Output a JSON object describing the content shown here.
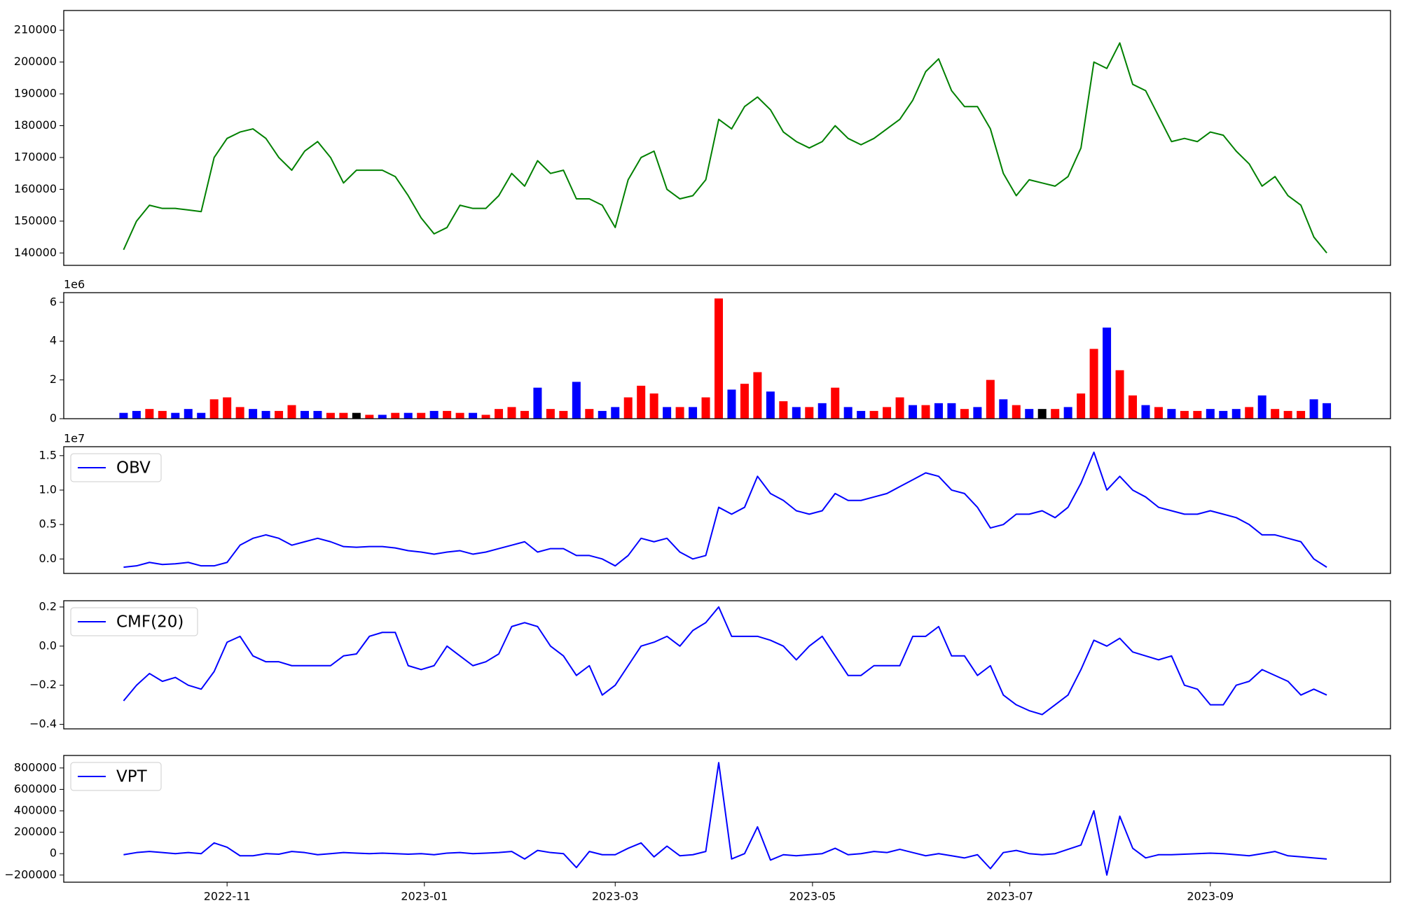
{
  "chart_data": [
    {
      "type": "line",
      "color": "green",
      "x": [
        0,
        4,
        8,
        12,
        16,
        20,
        24,
        28,
        32,
        36,
        40,
        44,
        48,
        52,
        56,
        60,
        64,
        68,
        72,
        76,
        80,
        84,
        88,
        92,
        96,
        100,
        104,
        108,
        112,
        116,
        120,
        124,
        128,
        132,
        136,
        140,
        144,
        148,
        152,
        156,
        160,
        164,
        168,
        172,
        176,
        180,
        184,
        188,
        192,
        196,
        200,
        204,
        208,
        212,
        216,
        220,
        224,
        228,
        232,
        236,
        240,
        244,
        248,
        252,
        256,
        260,
        264,
        268,
        272,
        276,
        280,
        284,
        288,
        292,
        296,
        300,
        304,
        308,
        312,
        316,
        320,
        324,
        328,
        332,
        336,
        340,
        344,
        348,
        352,
        356,
        360,
        364,
        368,
        372
      ],
      "values": [
        141000,
        150000,
        155000,
        154000,
        154000,
        153500,
        153000,
        170000,
        176000,
        178000,
        179000,
        176000,
        170000,
        166000,
        172000,
        175000,
        170000,
        162000,
        166000,
        166000,
        166000,
        164000,
        158000,
        151000,
        146000,
        148000,
        155000,
        154000,
        154000,
        158000,
        165000,
        161000,
        169000,
        165000,
        166000,
        157000,
        157000,
        155000,
        148000,
        163000,
        170000,
        172000,
        160000,
        157000,
        158000,
        163000,
        182000,
        179000,
        186000,
        189000,
        185000,
        178000,
        175000,
        173000,
        175000,
        180000,
        176000,
        174000,
        176000,
        179000,
        182000,
        188000,
        197000,
        201000,
        191000,
        186000,
        186000,
        179000,
        165000,
        158000,
        163000,
        162000,
        161000,
        164000,
        173000,
        200000,
        198000,
        206000,
        193000,
        191000,
        183000,
        175000,
        176000,
        175000,
        178000,
        177000,
        172000,
        168000,
        161000,
        164000,
        158000,
        155000,
        145000,
        140000
      ],
      "xlim": [
        -18.5,
        391.7
      ],
      "ylim": [
        136100,
        216200
      ],
      "yticks": [
        140000,
        150000,
        160000,
        170000,
        180000,
        190000,
        200000,
        210000
      ]
    },
    {
      "type": "bar",
      "offset_label": "1e6",
      "x": [
        0,
        4,
        8,
        12,
        16,
        20,
        24,
        28,
        32,
        36,
        40,
        44,
        48,
        52,
        56,
        60,
        64,
        68,
        72,
        76,
        80,
        84,
        88,
        92,
        96,
        100,
        104,
        108,
        112,
        116,
        120,
        124,
        128,
        132,
        136,
        140,
        144,
        148,
        152,
        156,
        160,
        164,
        168,
        172,
        176,
        180,
        184,
        188,
        192,
        196,
        200,
        204,
        208,
        212,
        216,
        220,
        224,
        228,
        232,
        236,
        240,
        244,
        248,
        252,
        256,
        260,
        264,
        268,
        272,
        276,
        280,
        284,
        288,
        292,
        296,
        300,
        304,
        308,
        312,
        316,
        320,
        324,
        328,
        332,
        336,
        340,
        344,
        348,
        352,
        356,
        360,
        364,
        368,
        372
      ],
      "values": [
        0.3,
        0.4,
        0.5,
        0.4,
        0.3,
        0.5,
        0.3,
        1.0,
        1.1,
        0.6,
        0.5,
        0.4,
        0.4,
        0.7,
        0.4,
        0.4,
        0.3,
        0.3,
        0.3,
        0.2,
        0.2,
        0.3,
        0.3,
        0.3,
        0.4,
        0.4,
        0.3,
        0.3,
        0.2,
        0.5,
        0.6,
        0.4,
        1.6,
        0.5,
        0.4,
        1.9,
        0.5,
        0.4,
        0.6,
        1.1,
        1.7,
        1.3,
        0.6,
        0.6,
        0.6,
        1.1,
        6.2,
        1.5,
        1.8,
        2.4,
        1.4,
        0.9,
        0.6,
        0.6,
        0.8,
        1.6,
        0.6,
        0.4,
        0.4,
        0.6,
        1.1,
        0.7,
        0.7,
        0.8,
        0.8,
        0.5,
        0.6,
        2.0,
        1.0,
        0.7,
        0.5,
        0.5,
        0.5,
        0.6,
        1.3,
        3.6,
        4.7,
        2.5,
        1.2,
        0.7,
        0.6,
        0.5,
        0.4,
        0.4,
        0.5,
        0.4,
        0.5,
        0.6,
        1.2,
        0.5,
        0.4,
        0.4,
        1.0,
        0.8
      ],
      "colors": [
        "blue",
        "blue",
        "red",
        "red",
        "blue",
        "blue",
        "blue",
        "red",
        "red",
        "red",
        "blue",
        "blue",
        "red",
        "red",
        "blue",
        "blue",
        "red",
        "red",
        "black",
        "red",
        "blue",
        "red",
        "blue",
        "red",
        "blue",
        "red",
        "red",
        "blue",
        "red",
        "red",
        "red",
        "red",
        "blue",
        "red",
        "red",
        "blue",
        "red",
        "blue",
        "blue",
        "red",
        "red",
        "red",
        "blue",
        "red",
        "blue",
        "red",
        "red",
        "blue",
        "red",
        "red",
        "blue",
        "red",
        "blue",
        "red",
        "blue",
        "red",
        "blue",
        "blue",
        "red",
        "red",
        "red",
        "blue",
        "red",
        "blue",
        "blue",
        "red",
        "blue",
        "red",
        "blue",
        "red",
        "blue",
        "black",
        "red",
        "blue",
        "red",
        "red",
        "blue",
        "red",
        "red",
        "blue",
        "red",
        "blue",
        "red",
        "red",
        "blue",
        "blue",
        "blue",
        "red",
        "blue",
        "red",
        "red",
        "red",
        "blue",
        "blue"
      ],
      "xlim": [
        -18.5,
        391.7
      ],
      "ylim": [
        0,
        6.5
      ],
      "yticks": [
        0,
        2,
        4,
        6
      ]
    },
    {
      "type": "line",
      "offset_label": "1e7",
      "legend": "upper left",
      "x": [
        0,
        4,
        8,
        12,
        16,
        20,
        24,
        28,
        32,
        36,
        40,
        44,
        48,
        52,
        56,
        60,
        64,
        68,
        72,
        76,
        80,
        84,
        88,
        92,
        96,
        100,
        104,
        108,
        112,
        116,
        120,
        124,
        128,
        132,
        136,
        140,
        144,
        148,
        152,
        156,
        160,
        164,
        168,
        172,
        176,
        180,
        184,
        188,
        192,
        196,
        200,
        204,
        208,
        212,
        216,
        220,
        224,
        228,
        232,
        236,
        240,
        244,
        248,
        252,
        256,
        260,
        264,
        268,
        272,
        276,
        280,
        284,
        288,
        292,
        296,
        300,
        304,
        308,
        312,
        316,
        320,
        324,
        328,
        332,
        336,
        340,
        344,
        348,
        352,
        356,
        360,
        364,
        368,
        372
      ],
      "series": [
        {
          "name": "OBV",
          "color": "blue",
          "values": [
            -0.12,
            -0.1,
            -0.05,
            -0.08,
            -0.07,
            -0.05,
            -0.1,
            -0.1,
            -0.05,
            0.2,
            0.3,
            0.35,
            0.3,
            0.2,
            0.25,
            0.3,
            0.25,
            0.18,
            0.17,
            0.18,
            0.18,
            0.16,
            0.12,
            0.1,
            0.07,
            0.1,
            0.12,
            0.07,
            0.1,
            0.15,
            0.2,
            0.25,
            0.1,
            0.15,
            0.15,
            0.05,
            0.05,
            0.0,
            -0.1,
            0.05,
            0.3,
            0.25,
            0.3,
            0.1,
            0.0,
            0.05,
            0.75,
            0.65,
            0.75,
            1.2,
            0.95,
            0.85,
            0.7,
            0.65,
            0.7,
            0.95,
            0.85,
            0.85,
            0.9,
            0.95,
            1.05,
            1.15,
            1.25,
            1.2,
            1.0,
            0.95,
            0.75,
            0.45,
            0.5,
            0.65,
            0.65,
            0.7,
            0.6,
            0.75,
            1.1,
            1.55,
            1.0,
            1.2,
            1.0,
            0.9,
            0.75,
            0.7,
            0.65,
            0.65,
            0.7,
            0.65,
            0.6,
            0.5,
            0.35,
            0.35,
            0.3,
            0.25,
            0.0,
            -0.12
          ]
        }
      ],
      "xlim": [
        -18.5,
        391.7
      ],
      "ylim": [
        -0.21,
        1.63
      ],
      "yticks": [
        {
          "value": 0,
          "label": "0.0"
        },
        {
          "value": 0.5,
          "label": "0.5"
        },
        {
          "value": 1,
          "label": "1.0"
        },
        {
          "value": 1.5,
          "label": "1.5"
        }
      ]
    },
    {
      "type": "line",
      "legend": "upper left",
      "x": [
        0,
        4,
        8,
        12,
        16,
        20,
        24,
        28,
        32,
        36,
        40,
        44,
        48,
        52,
        56,
        60,
        64,
        68,
        72,
        76,
        80,
        84,
        88,
        92,
        96,
        100,
        104,
        108,
        112,
        116,
        120,
        124,
        128,
        132,
        136,
        140,
        144,
        148,
        152,
        156,
        160,
        164,
        168,
        172,
        176,
        180,
        184,
        188,
        192,
        196,
        200,
        204,
        208,
        212,
        216,
        220,
        224,
        228,
        232,
        236,
        240,
        244,
        248,
        252,
        256,
        260,
        264,
        268,
        272,
        276,
        280,
        284,
        288,
        292,
        296,
        300,
        304,
        308,
        312,
        316,
        320,
        324,
        328,
        332,
        336,
        340,
        344,
        348,
        352,
        356,
        360,
        364,
        368,
        372
      ],
      "series": [
        {
          "name": "CMF(20)",
          "color": "blue",
          "values": [
            -0.28,
            -0.2,
            -0.14,
            -0.18,
            -0.16,
            -0.2,
            -0.22,
            -0.13,
            0.02,
            0.05,
            -0.05,
            -0.08,
            -0.08,
            -0.1,
            -0.1,
            -0.1,
            -0.1,
            -0.05,
            -0.04,
            0.05,
            0.07,
            0.07,
            -0.1,
            -0.12,
            -0.1,
            0.0,
            -0.05,
            -0.1,
            -0.08,
            -0.04,
            0.1,
            0.12,
            0.1,
            0.0,
            -0.05,
            -0.15,
            -0.1,
            -0.25,
            -0.2,
            -0.1,
            0.0,
            0.02,
            0.05,
            0.0,
            0.08,
            0.12,
            0.2,
            0.05,
            0.05,
            0.05,
            0.03,
            0.0,
            -0.07,
            0.0,
            0.05,
            -0.05,
            -0.15,
            -0.15,
            -0.1,
            -0.1,
            -0.1,
            0.05,
            0.05,
            0.1,
            -0.05,
            -0.05,
            -0.15,
            -0.1,
            -0.25,
            -0.3,
            -0.33,
            -0.35,
            -0.3,
            -0.25,
            -0.12,
            0.03,
            0.0,
            0.04,
            -0.03,
            -0.05,
            -0.07,
            -0.05,
            -0.2,
            -0.22,
            -0.3,
            -0.3,
            -0.2,
            -0.18,
            -0.12,
            -0.15,
            -0.18,
            -0.25,
            -0.22,
            -0.25
          ]
        }
      ],
      "xlim": [
        -18.5,
        391.7
      ],
      "ylim": [
        -0.423,
        0.232
      ],
      "yticks": [
        {
          "value": -0.4,
          "label": "−0.4"
        },
        {
          "value": -0.2,
          "label": "−0.2"
        },
        {
          "value": 0,
          "label": "0.0"
        },
        {
          "value": 0.2,
          "label": "0.2"
        }
      ]
    },
    {
      "type": "line",
      "legend": "upper left",
      "x": [
        0,
        4,
        8,
        12,
        16,
        20,
        24,
        28,
        32,
        36,
        40,
        44,
        48,
        52,
        56,
        60,
        64,
        68,
        72,
        76,
        80,
        84,
        88,
        92,
        96,
        100,
        104,
        108,
        112,
        116,
        120,
        124,
        128,
        132,
        136,
        140,
        144,
        148,
        152,
        156,
        160,
        164,
        168,
        172,
        176,
        180,
        184,
        188,
        192,
        196,
        200,
        204,
        208,
        212,
        216,
        220,
        224,
        228,
        232,
        236,
        240,
        244,
        248,
        252,
        256,
        260,
        264,
        268,
        272,
        276,
        280,
        284,
        288,
        292,
        296,
        300,
        304,
        308,
        312,
        316,
        320,
        324,
        328,
        332,
        336,
        340,
        344,
        348,
        352,
        356,
        360,
        364,
        368,
        372
      ],
      "series": [
        {
          "name": "VPT",
          "color": "blue",
          "values": [
            -10000,
            10000,
            20000,
            10000,
            0,
            10000,
            0,
            100000,
            60000,
            -20000,
            -20000,
            0,
            -5000,
            20000,
            10000,
            -10000,
            0,
            10000,
            5000,
            0,
            5000,
            0,
            -5000,
            0,
            -10000,
            5000,
            10000,
            0,
            5000,
            10000,
            20000,
            -50000,
            30000,
            10000,
            0,
            -130000,
            20000,
            -10000,
            -10000,
            50000,
            100000,
            -30000,
            70000,
            -20000,
            -10000,
            20000,
            850000,
            -50000,
            0,
            250000,
            -60000,
            -10000,
            -20000,
            -10000,
            0,
            50000,
            -10000,
            0,
            20000,
            10000,
            40000,
            10000,
            -20000,
            0,
            -20000,
            -40000,
            -10000,
            -140000,
            10000,
            30000,
            0,
            -10000,
            0,
            40000,
            80000,
            400000,
            -200000,
            350000,
            50000,
            -40000,
            -10000,
            -10000,
            -5000,
            0,
            5000,
            0,
            -10000,
            -20000,
            0,
            20000,
            -20000,
            -30000,
            -40000,
            -50000
          ]
        }
      ],
      "xlim": [
        -18.5,
        391.7
      ],
      "ylim": [
        -266700,
        916700
      ],
      "yticks": [
        {
          "value": -200000,
          "label": "−200000"
        },
        0,
        200000,
        400000,
        600000,
        800000
      ],
      "xticks": [
        {
          "value": 32,
          "label": "2022-11"
        },
        {
          "value": 93,
          "label": "2023-01"
        },
        {
          "value": 152,
          "label": "2023-03"
        },
        {
          "value": 213,
          "label": "2023-05"
        },
        {
          "value": 274,
          "label": "2023-07"
        },
        {
          "value": 336,
          "label": "2023-09"
        }
      ]
    }
  ]
}
